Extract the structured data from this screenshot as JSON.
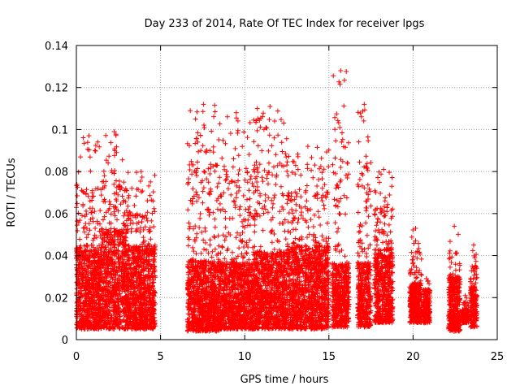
{
  "chart_data": {
    "type": "scatter",
    "title": "Day 233 of 2014, Rate Of TEC Index for receiver lpgs",
    "xlabel": "GPS time / hours",
    "ylabel": "ROTI / TECUs",
    "xlim": [
      0,
      25
    ],
    "ylim": [
      0,
      0.14
    ],
    "xticks": [
      "0",
      "5",
      "10",
      "15",
      "20",
      "25"
    ],
    "yticks": [
      "0",
      "0.02",
      "0.04",
      "0.06",
      "0.08",
      "0.1",
      "0.12",
      "0.14"
    ],
    "grid": true,
    "marker": "+",
    "color": "#ff0000",
    "clusters": [
      {
        "x_start": 0.0,
        "x_end": 1.5,
        "y_min": 0.005,
        "y_typical": 0.03,
        "y_max": 0.097
      },
      {
        "x_start": 1.5,
        "x_end": 3.0,
        "y_min": 0.005,
        "y_typical": 0.035,
        "y_max": 0.099
      },
      {
        "x_start": 3.0,
        "x_end": 4.7,
        "y_min": 0.005,
        "y_typical": 0.03,
        "y_max": 0.08
      },
      {
        "x_start": 6.6,
        "x_end": 8.5,
        "y_min": 0.004,
        "y_typical": 0.025,
        "y_max": 0.112
      },
      {
        "x_start": 8.5,
        "x_end": 10.5,
        "y_min": 0.005,
        "y_typical": 0.025,
        "y_max": 0.108
      },
      {
        "x_start": 10.5,
        "x_end": 12.5,
        "y_min": 0.005,
        "y_typical": 0.028,
        "y_max": 0.111
      },
      {
        "x_start": 12.5,
        "x_end": 15.0,
        "y_min": 0.005,
        "y_typical": 0.03,
        "y_max": 0.092
      },
      {
        "x_start": 15.2,
        "x_end": 16.2,
        "y_min": 0.006,
        "y_typical": 0.025,
        "y_max": 0.128
      },
      {
        "x_start": 16.7,
        "x_end": 17.5,
        "y_min": 0.006,
        "y_typical": 0.025,
        "y_max": 0.112
      },
      {
        "x_start": 17.7,
        "x_end": 18.8,
        "y_min": 0.008,
        "y_typical": 0.03,
        "y_max": 0.081
      },
      {
        "x_start": 19.8,
        "x_end": 20.5,
        "y_min": 0.008,
        "y_typical": 0.02,
        "y_max": 0.053
      },
      {
        "x_start": 20.6,
        "x_end": 21.0,
        "y_min": 0.008,
        "y_typical": 0.018,
        "y_max": 0.029
      },
      {
        "x_start": 22.1,
        "x_end": 22.8,
        "y_min": 0.004,
        "y_typical": 0.02,
        "y_max": 0.054
      },
      {
        "x_start": 22.9,
        "x_end": 23.3,
        "y_min": 0.008,
        "y_typical": 0.012,
        "y_max": 0.021
      },
      {
        "x_start": 23.4,
        "x_end": 23.8,
        "y_min": 0.006,
        "y_typical": 0.018,
        "y_max": 0.045
      }
    ]
  }
}
